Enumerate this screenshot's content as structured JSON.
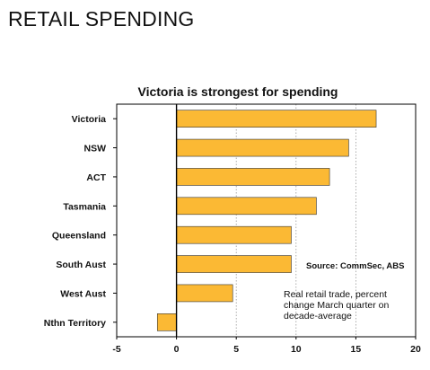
{
  "slide": {
    "title": "RETAIL SPENDING"
  },
  "chart_data": {
    "type": "bar",
    "orientation": "horizontal",
    "title": "Victoria is strongest for spending",
    "categories": [
      "Victoria",
      "NSW",
      "ACT",
      "Tasmania",
      "Queensland",
      "South Aust",
      "West Aust",
      "Nthn Territory"
    ],
    "values": [
      16.7,
      14.4,
      12.8,
      11.7,
      9.6,
      9.6,
      4.7,
      -1.6
    ],
    "xlim": [
      -5,
      20
    ],
    "xticks": [
      -5,
      0,
      5,
      10,
      15,
      20
    ],
    "grid": "vertical-dotted",
    "legend": "none",
    "source": "Source: CommSec, ABS",
    "note": [
      "Real retail trade, percent",
      "change March quarter on",
      "decade-average"
    ],
    "colors": {
      "bar": "#FBB934",
      "bar_edge": "#333333",
      "axis": "#000000",
      "grid": "#999999"
    }
  }
}
